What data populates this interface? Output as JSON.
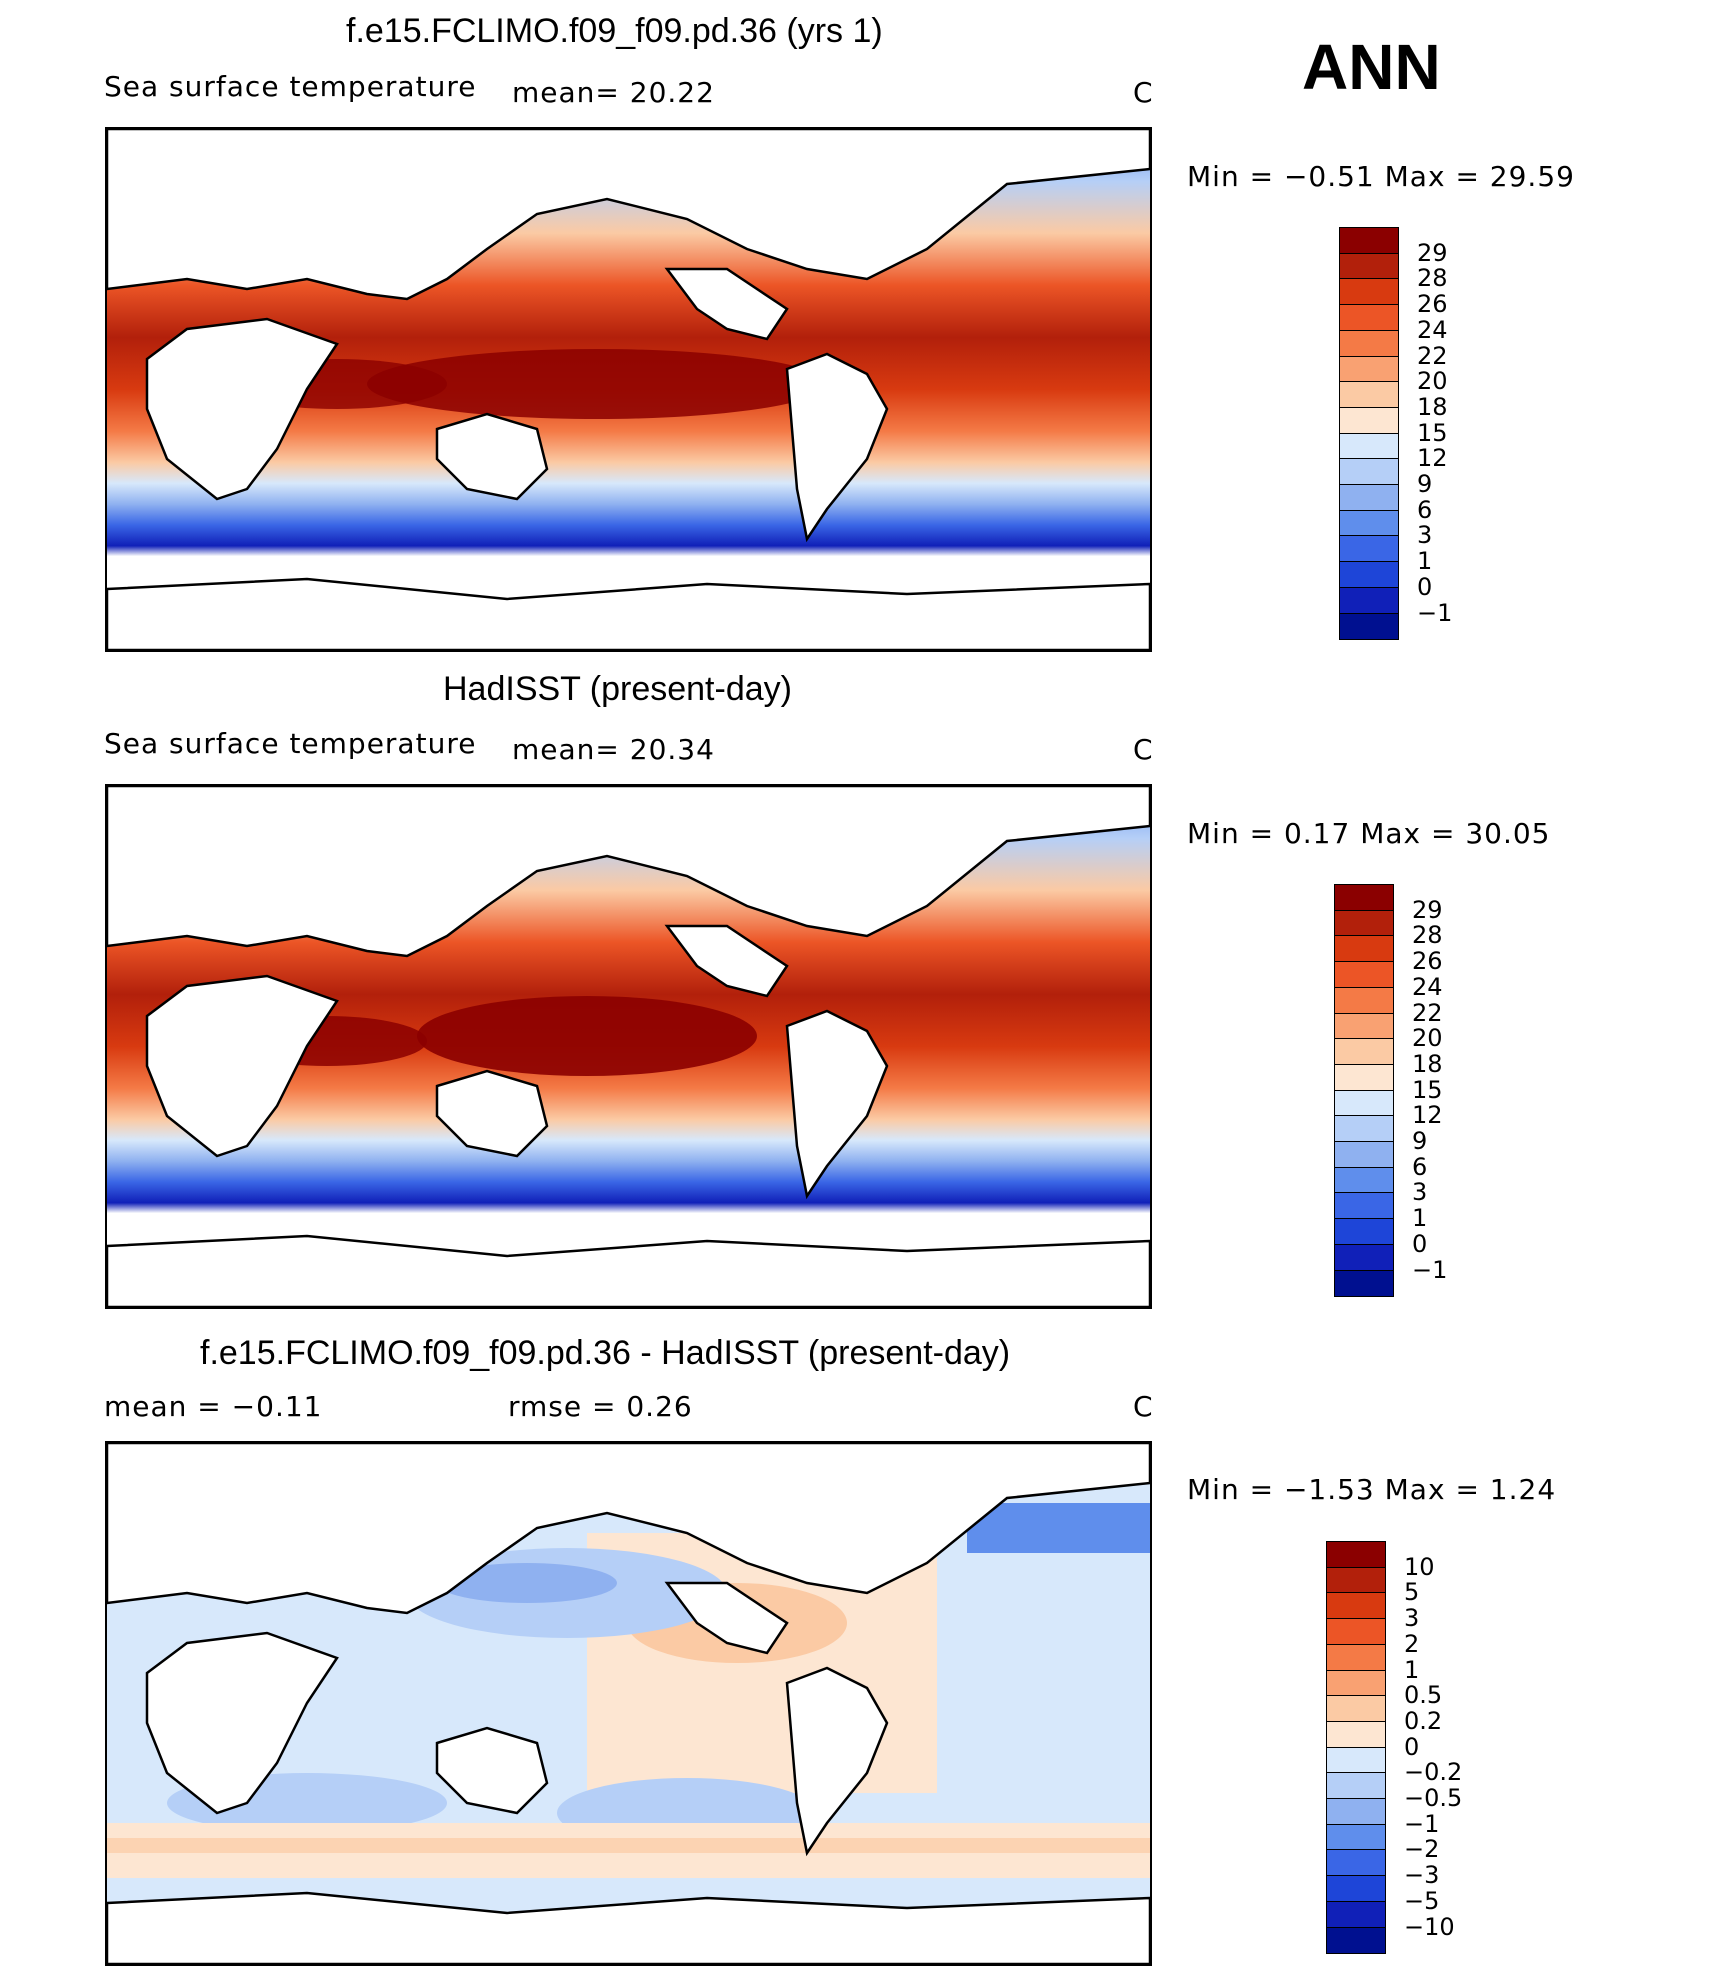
{
  "season": "ANN",
  "units_label": "C",
  "panels": [
    {
      "id": "model",
      "title": "f.e15.FCLIMO.f09_f09.pd.36 (yrs 1)",
      "subtitle_left": "Sea surface temperature",
      "subtitle_mid": "mean=   20.22",
      "units": "C",
      "minmax": "Min =   −0.51  Max =   29.59",
      "colorbar": {
        "labels": [
          "29",
          "28",
          "26",
          "24",
          "22",
          "20",
          "18",
          "15",
          "12",
          "9",
          "6",
          "3",
          "1",
          "0",
          "−1"
        ],
        "colors": [
          "#8b0000",
          "#b2200b",
          "#d83a10",
          "#ec5526",
          "#f47a46",
          "#f9a172",
          "#fbcaa4",
          "#fde6d2",
          "#d7e8fb",
          "#b5cff7",
          "#8fb1f0",
          "#5f8eec",
          "#3a66e6",
          "#1e45d8",
          "#1020b8",
          "#001090"
        ]
      }
    },
    {
      "id": "obs",
      "title": "HadISST (present-day)",
      "subtitle_left": "Sea surface temperature",
      "subtitle_mid": "mean=   20.34",
      "units": "C",
      "minmax": "Min =    0.17  Max =   30.05",
      "colorbar": {
        "labels": [
          "29",
          "28",
          "26",
          "24",
          "22",
          "20",
          "18",
          "15",
          "12",
          "9",
          "6",
          "3",
          "1",
          "0",
          "−1"
        ],
        "colors": [
          "#8b0000",
          "#b2200b",
          "#d83a10",
          "#ec5526",
          "#f47a46",
          "#f9a172",
          "#fbcaa4",
          "#fde6d2",
          "#d7e8fb",
          "#b5cff7",
          "#8fb1f0",
          "#5f8eec",
          "#3a66e6",
          "#1e45d8",
          "#1020b8",
          "#001090"
        ]
      }
    },
    {
      "id": "diff",
      "title": "f.e15.FCLIMO.f09_f09.pd.36 - HadISST (present-day)",
      "subtitle_left": "mean =    −0.11",
      "subtitle_mid": "rmse =     0.26",
      "units": "C",
      "minmax": "Min =   −1.53  Max =     1.24",
      "colorbar": {
        "labels": [
          "10",
          "5",
          "3",
          "2",
          "1",
          "0.5",
          "0.2",
          "0",
          "−0.2",
          "−0.5",
          "−1",
          "−2",
          "−3",
          "−5",
          "−10"
        ],
        "colors": [
          "#8b0000",
          "#b2200b",
          "#d83a10",
          "#ec5526",
          "#f47a46",
          "#f9a172",
          "#fbcaa4",
          "#fde6d2",
          "#d7e8fb",
          "#b5cff7",
          "#8fb1f0",
          "#5f8eec",
          "#3a66e6",
          "#1e45d8",
          "#1020b8",
          "#001090"
        ]
      }
    }
  ],
  "chart_data": [
    {
      "type": "heatmap",
      "title": "f.e15.FCLIMO.f09_f09.pd.36 (yrs 1)",
      "variable": "Sea surface temperature",
      "units": "C",
      "mean": 20.22,
      "min": -0.51,
      "max": 29.59,
      "contour_levels": [
        -1,
        0,
        1,
        3,
        6,
        9,
        12,
        15,
        18,
        20,
        22,
        24,
        26,
        28,
        29
      ]
    },
    {
      "type": "heatmap",
      "title": "HadISST (present-day)",
      "variable": "Sea surface temperature",
      "units": "C",
      "mean": 20.34,
      "min": 0.17,
      "max": 30.05,
      "contour_levels": [
        -1,
        0,
        1,
        3,
        6,
        9,
        12,
        15,
        18,
        20,
        22,
        24,
        26,
        28,
        29
      ]
    },
    {
      "type": "heatmap",
      "title": "f.e15.FCLIMO.f09_f09.pd.36 - HadISST (present-day)",
      "units": "C",
      "mean": -0.11,
      "rmse": 0.26,
      "min": -1.53,
      "max": 1.24,
      "contour_levels": [
        -10,
        -5,
        -3,
        -2,
        -1,
        -0.5,
        -0.2,
        0,
        0.2,
        0.5,
        1,
        2,
        3,
        5,
        10
      ]
    }
  ]
}
